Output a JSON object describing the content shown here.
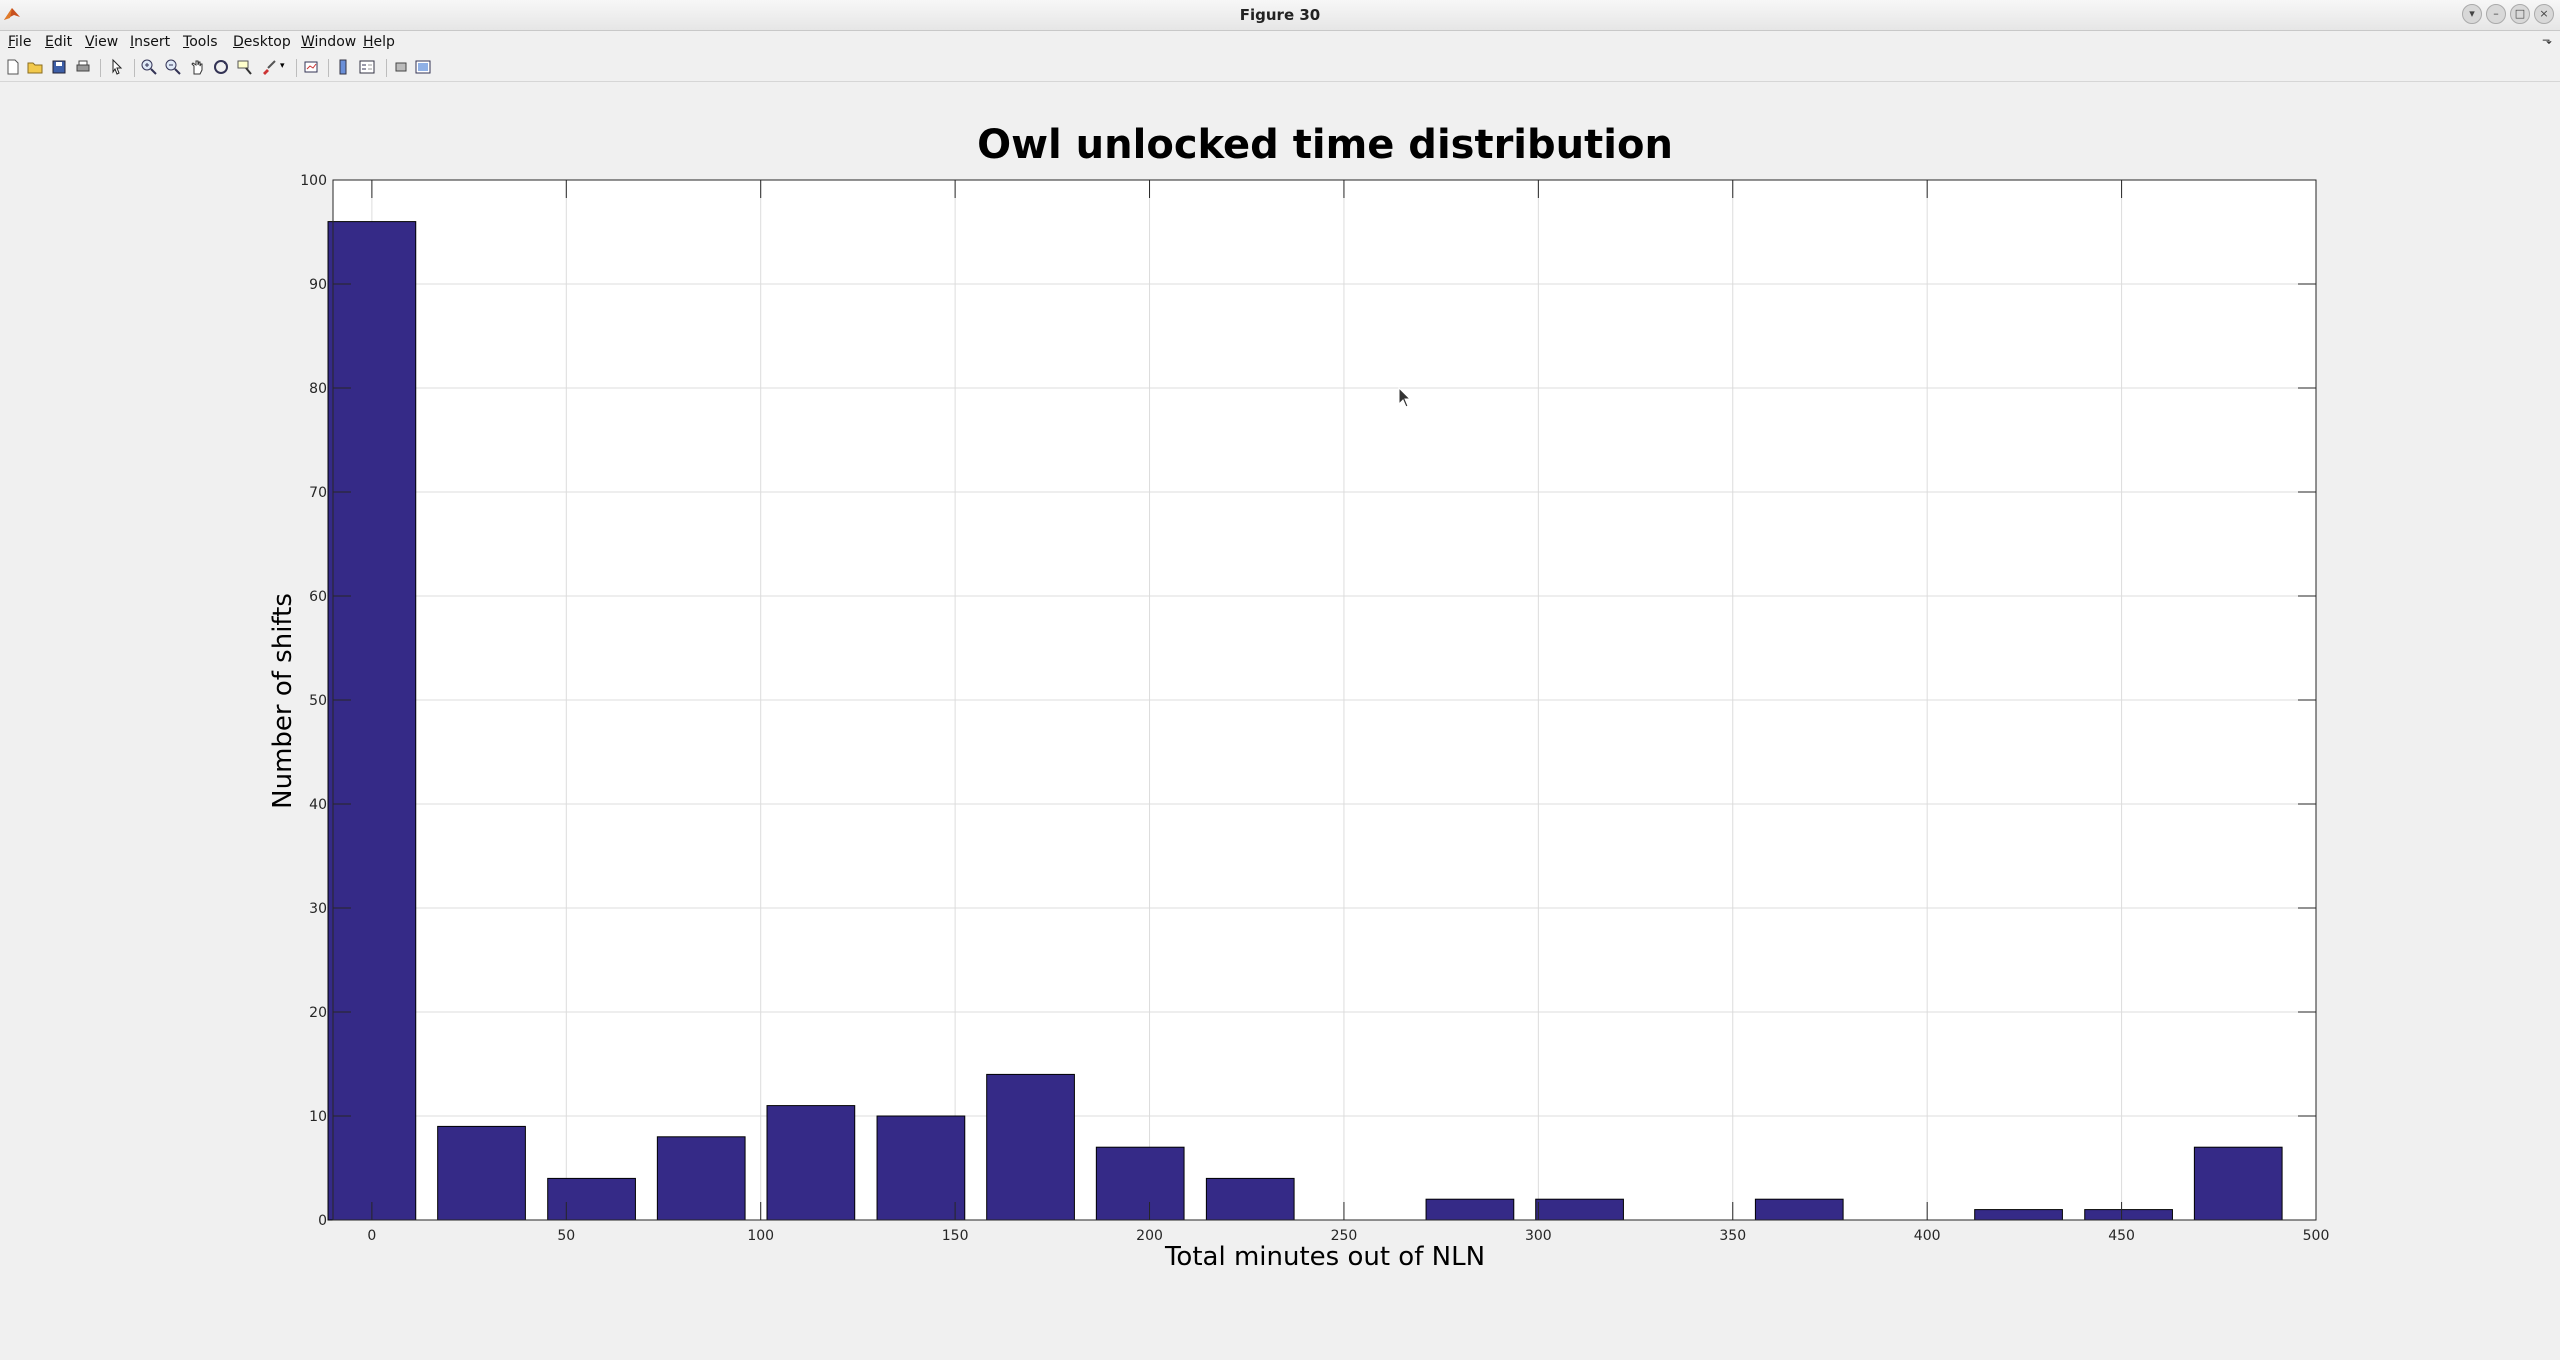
{
  "window": {
    "title": "Figure 30"
  },
  "menu": {
    "items": [
      "File",
      "Edit",
      "View",
      "Insert",
      "Tools",
      "Desktop",
      "Window",
      "Help"
    ]
  },
  "toolbar": {
    "icons": [
      "new-figure-icon",
      "open-file-icon",
      "save-icon",
      "print-icon",
      "edit-plot-icon",
      "zoom-in-icon",
      "zoom-out-icon",
      "pan-icon",
      "rotate-3d-icon",
      "data-cursor-icon",
      "brush-icon",
      "link-plot-icon",
      "colorbar-icon",
      "legend-icon",
      "hide-plot-tools-icon",
      "show-plot-tools-icon"
    ]
  },
  "chart_data": {
    "type": "bar",
    "title": "Owl unlocked time distribution",
    "xlabel": "Total minutes out of NLN",
    "ylabel": "Number of shifts",
    "x": [
      0,
      28.2,
      56.5,
      84.7,
      112.9,
      141.2,
      169.4,
      197.6,
      225.9,
      254.1,
      282.4,
      310.6,
      338.8,
      367.1,
      395.3,
      423.5,
      451.8,
      480
    ],
    "values": [
      96,
      9,
      4,
      8,
      11,
      10,
      14,
      7,
      4,
      0,
      2,
      2,
      0,
      2,
      0,
      1,
      1,
      7
    ],
    "xlim": [
      -10,
      500
    ],
    "ylim": [
      0,
      100
    ],
    "xticks": [
      0,
      50,
      100,
      150,
      200,
      250,
      300,
      350,
      400,
      450,
      500
    ],
    "yticks": [
      0,
      10,
      20,
      30,
      40,
      50,
      60,
      70,
      80,
      90,
      100
    ],
    "grid": true,
    "bar_color": "#352a87"
  }
}
